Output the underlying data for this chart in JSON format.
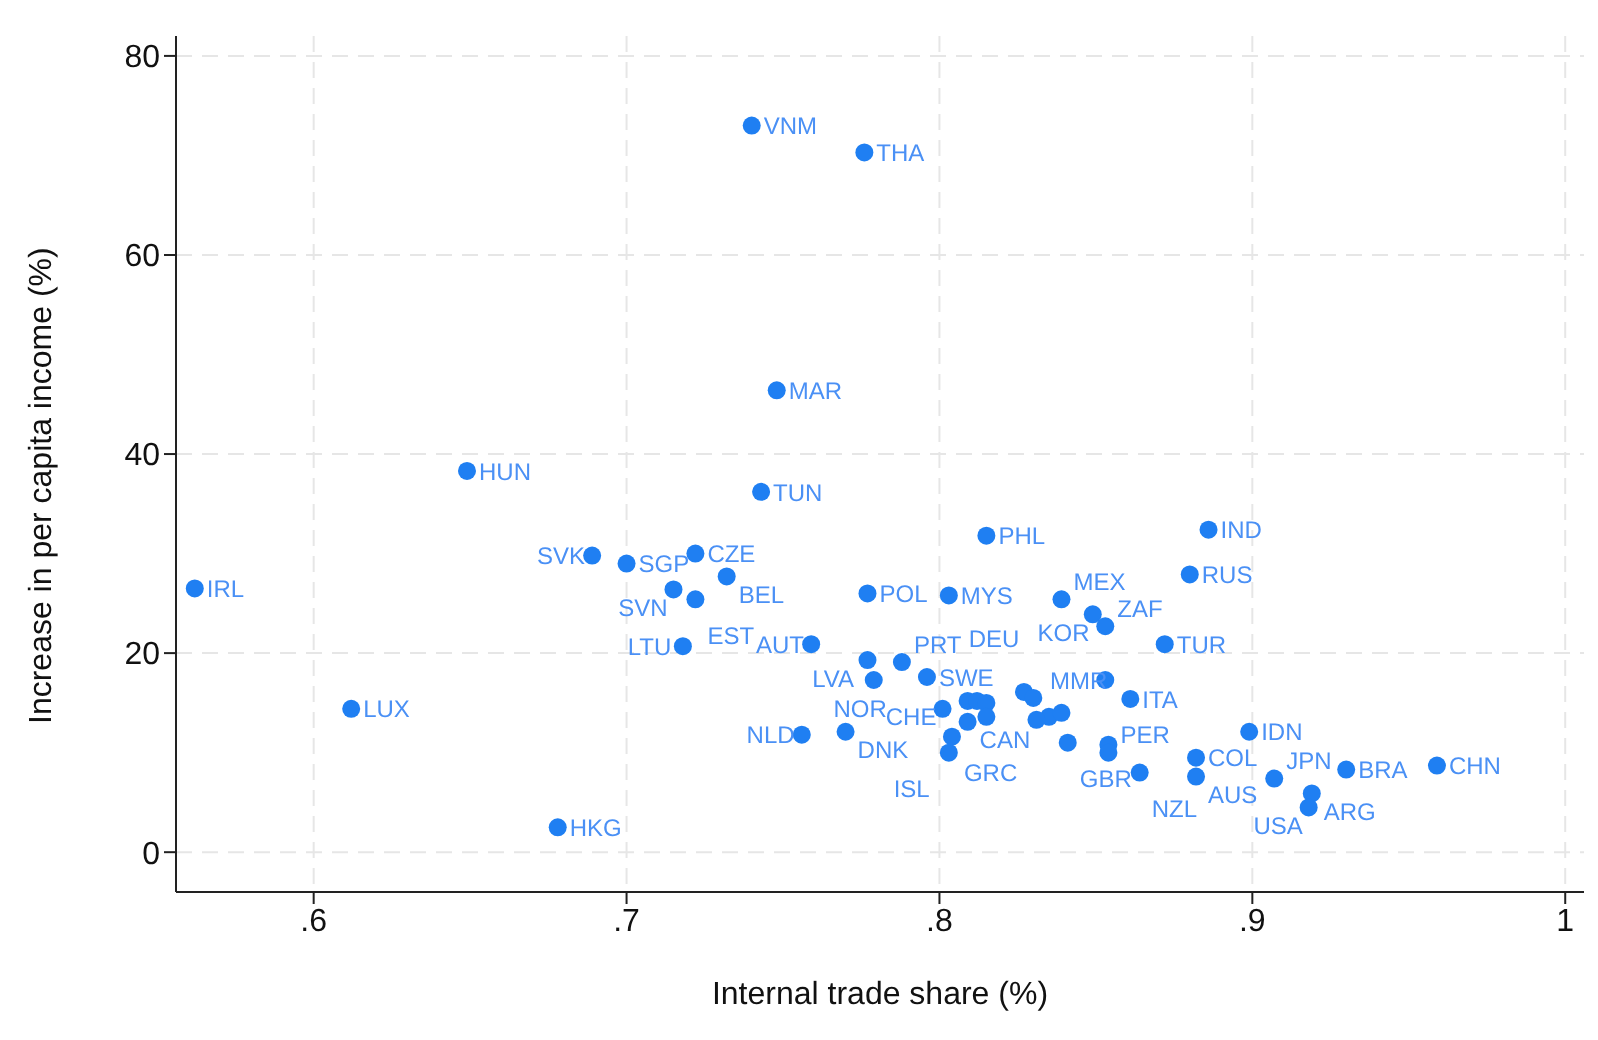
{
  "chart_data": {
    "type": "scatter",
    "xlabel": "Internal trade share (%)",
    "ylabel": "Increase in per capita income (%)",
    "xlim": [
      0.556,
      1.006
    ],
    "ylim": [
      -4,
      82
    ],
    "xticks": [
      {
        "value": 0.6,
        "label": ".6"
      },
      {
        "value": 0.7,
        "label": ".7"
      },
      {
        "value": 0.8,
        "label": ".8"
      },
      {
        "value": 0.9,
        "label": ".9"
      },
      {
        "value": 1,
        "label": "1"
      }
    ],
    "yticks": [
      0,
      20,
      40,
      60,
      80
    ],
    "grid": true,
    "marker": "circle",
    "series": [
      {
        "color": "#1f7ff2",
        "x": [
          0.74,
          0.776,
          0.748,
          0.649,
          0.743,
          0.815,
          0.886,
          0.88,
          0.562,
          0.689,
          0.7,
          0.722,
          0.732,
          0.715,
          0.722,
          0.777,
          0.803,
          0.839,
          0.849,
          0.853,
          0.872,
          0.718,
          0.759,
          0.777,
          0.788,
          0.779,
          0.796,
          0.853,
          0.861,
          0.899,
          0.756,
          0.77,
          0.612,
          0.678,
          0.801,
          0.809,
          0.812,
          0.815,
          0.827,
          0.83,
          0.835,
          0.831,
          0.839,
          0.809,
          0.815,
          0.804,
          0.803,
          0.841,
          0.854,
          0.854,
          0.864,
          0.882,
          0.882,
          0.907,
          0.93,
          0.959,
          0.919,
          0.918
        ],
        "values": [
          73.0,
          70.3,
          46.4,
          38.3,
          36.2,
          31.8,
          32.4,
          27.9,
          26.5,
          29.8,
          29.0,
          30.0,
          27.7,
          26.4,
          25.4,
          26.0,
          25.8,
          25.4,
          23.9,
          22.7,
          20.9,
          20.7,
          20.9,
          19.3,
          19.1,
          17.3,
          17.6,
          17.3,
          15.4,
          12.1,
          11.8,
          12.1,
          14.4,
          2.5,
          14.4,
          15.2,
          15.2,
          15.0,
          16.1,
          15.5,
          13.6,
          13.3,
          14.0,
          13.1,
          13.6,
          11.6,
          10.0,
          11.0,
          10.8,
          10.0,
          8.0,
          9.5,
          7.6,
          7.4,
          8.3,
          8.7,
          5.9,
          4.5
        ]
      }
    ],
    "annotations": [
      {
        "text": "VNM",
        "x": 0.74,
        "y": 73.0
      },
      {
        "text": "THA",
        "x": 0.776,
        "y": 70.3
      },
      {
        "text": "MAR",
        "x": 0.748,
        "y": 46.4
      },
      {
        "text": "HUN",
        "x": 0.649,
        "y": 38.3
      },
      {
        "text": "TUN",
        "x": 0.743,
        "y": 36.2
      },
      {
        "text": "PHL",
        "x": 0.815,
        "y": 31.8
      },
      {
        "text": "IND",
        "x": 0.886,
        "y": 32.4
      },
      {
        "text": "RUS",
        "x": 0.88,
        "y": 27.9
      },
      {
        "text": "IRL",
        "x": 0.562,
        "y": 26.5
      },
      {
        "text": "SVK",
        "x": 0.689,
        "y": 29.8
      },
      {
        "text": "SGP",
        "x": 0.7,
        "y": 29.0
      },
      {
        "text": "CZE",
        "x": 0.722,
        "y": 30.0
      },
      {
        "text": "BEL",
        "x": 0.732,
        "y": 27.7
      },
      {
        "text": "SVN",
        "x": 0.715,
        "y": 26.4
      },
      {
        "text": "EST",
        "x": 0.722,
        "y": 25.4
      },
      {
        "text": "POL",
        "x": 0.777,
        "y": 26.0
      },
      {
        "text": "MYS",
        "x": 0.803,
        "y": 25.8
      },
      {
        "text": "MEX",
        "x": 0.839,
        "y": 25.4
      },
      {
        "text": "KOR",
        "x": 0.849,
        "y": 23.9
      },
      {
        "text": "ZAF",
        "x": 0.853,
        "y": 22.7
      },
      {
        "text": "TUR",
        "x": 0.872,
        "y": 20.9
      },
      {
        "text": "LTU",
        "x": 0.718,
        "y": 20.7
      },
      {
        "text": "AUT",
        "x": 0.759,
        "y": 20.9
      },
      {
        "text": "LVA",
        "x": 0.777,
        "y": 19.3
      },
      {
        "text": "PRT",
        "x": 0.788,
        "y": 19.1
      },
      {
        "text": "CHE",
        "x": 0.779,
        "y": 17.3
      },
      {
        "text": "SWE",
        "x": 0.796,
        "y": 17.6
      },
      {
        "text": "MMR",
        "x": 0.853,
        "y": 17.3
      },
      {
        "text": "ITA",
        "x": 0.861,
        "y": 15.4
      },
      {
        "text": "IDN",
        "x": 0.899,
        "y": 12.1
      },
      {
        "text": "NLD",
        "x": 0.756,
        "y": 11.8
      },
      {
        "text": "DNK",
        "x": 0.77,
        "y": 12.1
      },
      {
        "text": "LUX",
        "x": 0.612,
        "y": 14.4
      },
      {
        "text": "HKG",
        "x": 0.678,
        "y": 2.5
      },
      {
        "text": "NOR",
        "x": 0.801,
        "y": 14.4
      },
      {
        "text": "DEU",
        "x": 0.827,
        "y": 16.1
      },
      {
        "text": "CAN",
        "x": 0.809,
        "y": 13.1
      },
      {
        "text": "GRC",
        "x": 0.804,
        "y": 11.6
      },
      {
        "text": "ISL",
        "x": 0.803,
        "y": 10.0
      },
      {
        "text": "GBR",
        "x": 0.841,
        "y": 11.0
      },
      {
        "text": "PER",
        "x": 0.854,
        "y": 10.0
      },
      {
        "text": "NZL",
        "x": 0.864,
        "y": 8.0
      },
      {
        "text": "COL",
        "x": 0.882,
        "y": 9.5
      },
      {
        "text": "AUS",
        "x": 0.882,
        "y": 7.6
      },
      {
        "text": "JPN",
        "x": 0.907,
        "y": 7.4
      },
      {
        "text": "BRA",
        "x": 0.93,
        "y": 8.3
      },
      {
        "text": "CHN",
        "x": 0.959,
        "y": 8.7
      },
      {
        "text": "ARG",
        "x": 0.919,
        "y": 5.9
      },
      {
        "text": "USA",
        "x": 0.918,
        "y": 4.5
      }
    ]
  }
}
